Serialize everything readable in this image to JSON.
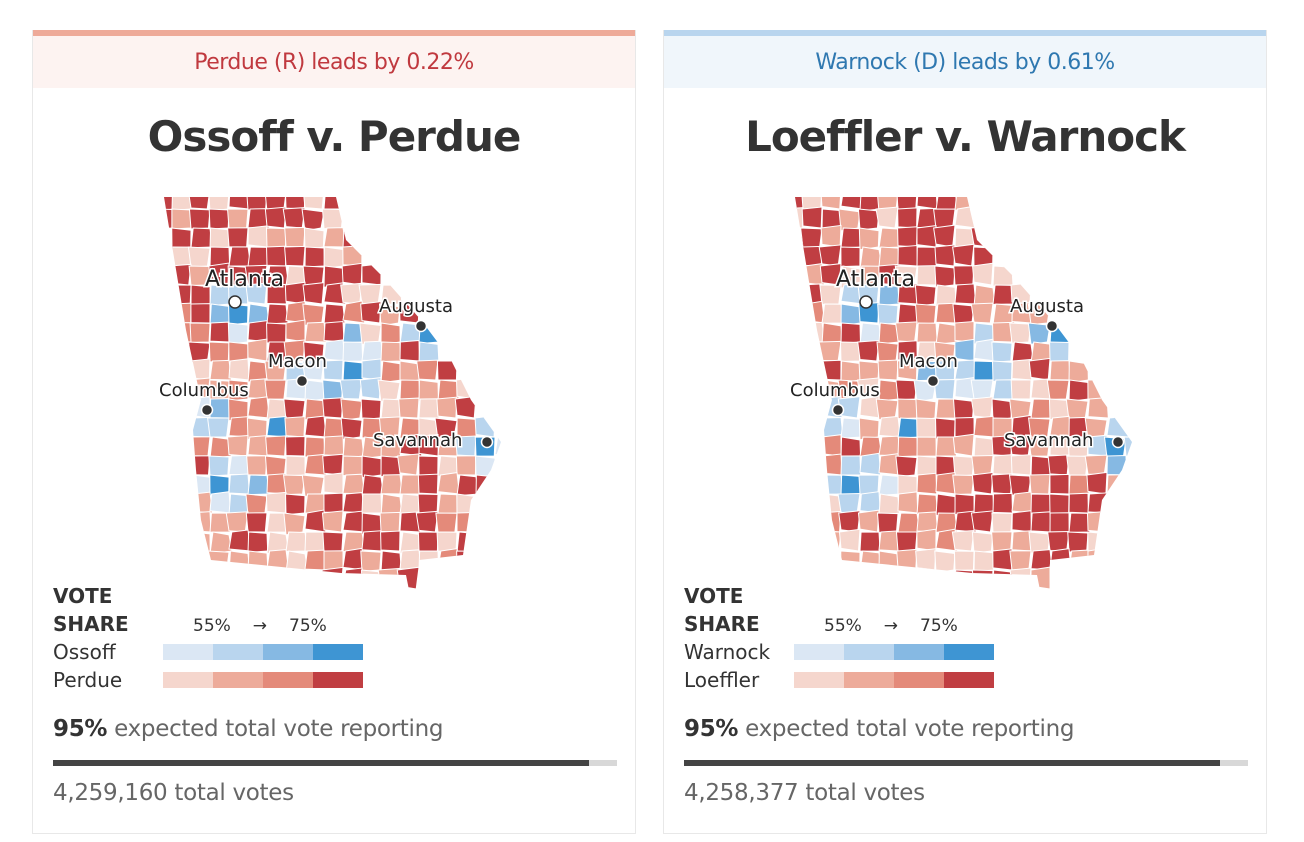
{
  "colors": {
    "dem": [
      "#dbe7f4",
      "#b9d5ee",
      "#86b9e3",
      "#3e95d3"
    ],
    "rep": [
      "#f5d6cd",
      "#edab9a",
      "#e48a7a",
      "#c03e42"
    ],
    "rep_bar": "#eeaa99",
    "rep_lead_bg": "#fdf3f1",
    "rep_lead_text": "#c0393f",
    "dem_bar": "#b9d5ee",
    "dem_lead_bg": "#f0f6fb",
    "dem_lead_text": "#2f78b0"
  },
  "races": [
    {
      "lead": "Perdue (R) leads by 0.22%",
      "leader_party": "rep",
      "title": "Ossoff v. Perdue",
      "legend": {
        "heading_1": "VOTE",
        "heading_2": "SHARE",
        "low": "55%",
        "arrow": "→",
        "high": "75%",
        "dem_name": "Ossoff",
        "rep_name": "Perdue"
      },
      "reporting_pct": "95%",
      "reporting_text": "expected total vote reporting",
      "reporting_value": 95,
      "total_votes": "4,259,160 total votes",
      "seed": 7
    },
    {
      "lead": "Warnock (D) leads by 0.61%",
      "leader_party": "dem",
      "title": "Loeffler v. Warnock",
      "legend": {
        "heading_1": "VOTE",
        "heading_2": "SHARE",
        "low": "55%",
        "arrow": "→",
        "high": "75%",
        "dem_name": "Warnock",
        "rep_name": "Loeffler"
      },
      "reporting_pct": "95%",
      "reporting_text": "expected total vote reporting",
      "reporting_value": 95,
      "total_votes": "4,258,377 total votes",
      "seed": 13
    }
  ],
  "cities": [
    "Atlanta",
    "Augusta",
    "Macon",
    "Columbus",
    "Savannah"
  ]
}
